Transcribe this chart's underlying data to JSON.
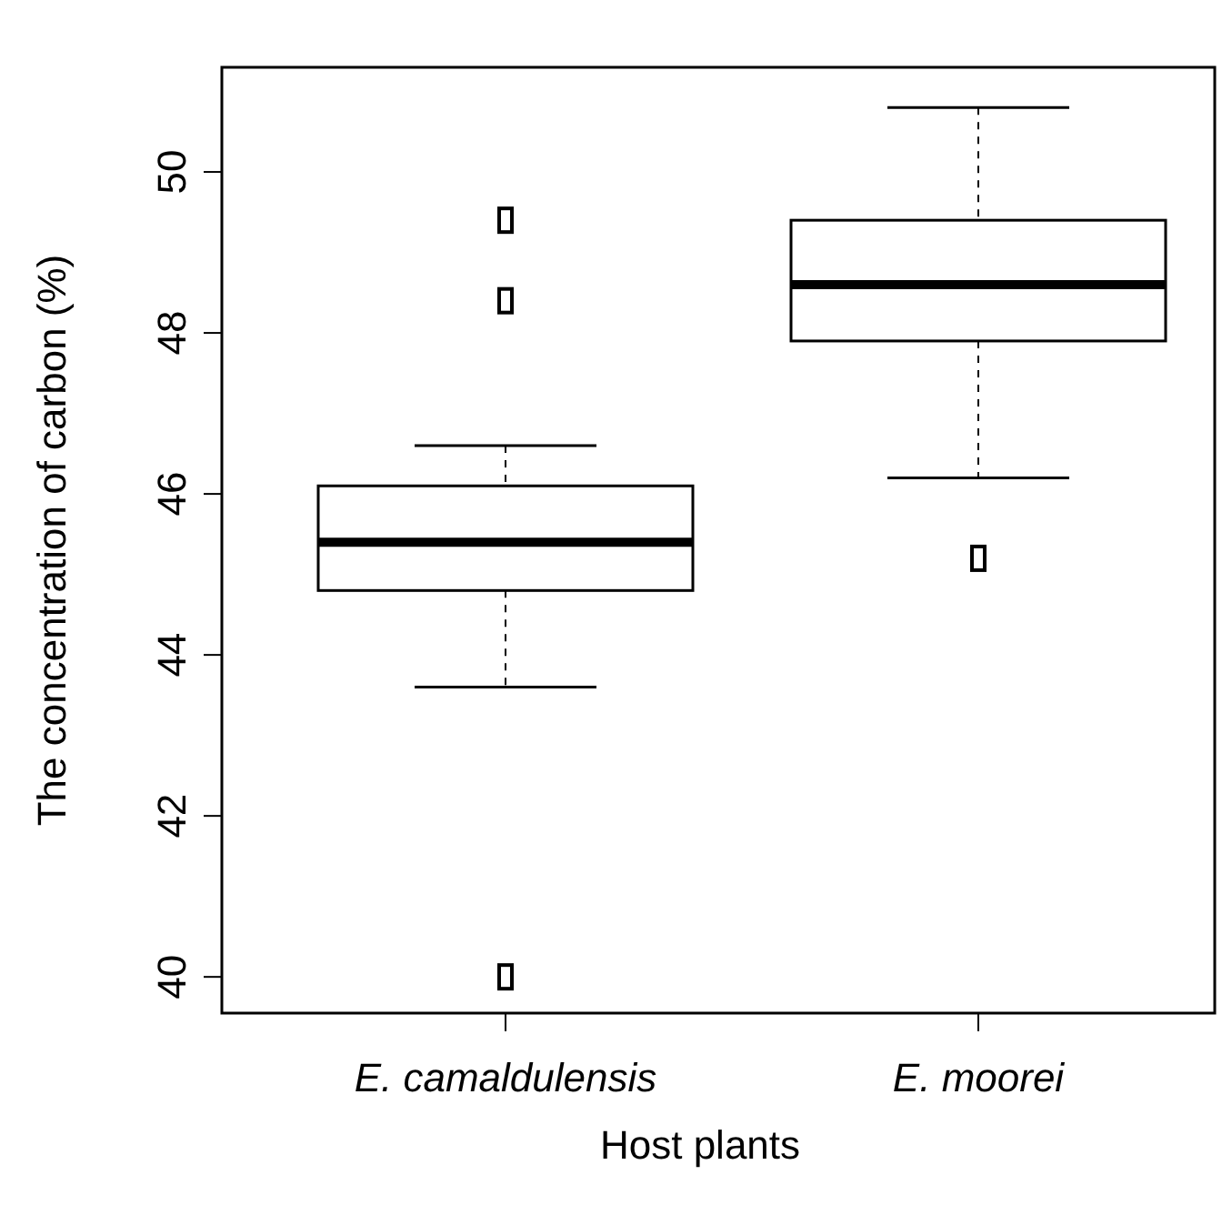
{
  "chart_data": {
    "type": "box",
    "xlabel": "Host plants",
    "ylabel": "The concentration of carbon (%)",
    "categories": [
      "E. camaldulensis",
      "E. moorei"
    ],
    "boxes": [
      {
        "low": 43.6,
        "q1": 44.8,
        "median": 45.4,
        "q3": 46.1,
        "high": 46.6,
        "outliers": [
          49.4,
          48.4,
          40.0
        ]
      },
      {
        "low": 46.2,
        "q1": 47.9,
        "median": 48.6,
        "q3": 49.4,
        "high": 50.8,
        "outliers": [
          45.2
        ]
      }
    ],
    "ylim": [
      39.55,
      51.3
    ],
    "yticks": [
      40,
      42,
      44,
      46,
      48,
      50
    ],
    "grid": false
  }
}
